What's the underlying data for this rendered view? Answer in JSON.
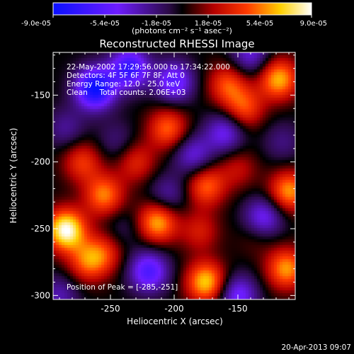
{
  "colorbar": {
    "ticks": [
      "-9.0e-05",
      "-5.4e-05",
      "-1.8e-05",
      "1.8e-05",
      "5.4e-05",
      "9.0e-05"
    ],
    "unit_label": "(photons cm⁻² s⁻¹ asec⁻²)",
    "range": [
      -9e-05,
      9e-05
    ]
  },
  "footer": {
    "timestamp": "20-Apr-2013 09:07"
  },
  "chart_data": {
    "type": "heatmap",
    "title": "Reconstructed RHESSI Image",
    "xlabel": "Heliocentric X (arcsec)",
    "ylabel": "Heliocentric Y (arcsec)",
    "xlim": [
      -295,
      -105
    ],
    "ylim": [
      -303,
      -118
    ],
    "xticks": [
      "-250",
      "-200",
      "-150"
    ],
    "xtick_values": [
      -250,
      -200,
      -150
    ],
    "yticks": [
      "-150",
      "-200",
      "-250",
      "-300"
    ],
    "ytick_values": [
      -150,
      -200,
      -250,
      -300
    ],
    "colormap": "blue-purple-black-red-yellow-white",
    "annotations": [
      "22-May-2002 17:29:56.000 to 17:34:22.000",
      "Detectors: 4F 5F 6F 7F 8F, Att 0",
      "Energy Range: 12.0 - 25.0 keV",
      "Clean     Total counts: 2.06E+03"
    ],
    "peak_label": "Position of Peak = [-285,-251]",
    "peak_position": [
      -285,
      -251
    ],
    "sources": [
      {
        "x": -285,
        "y": -251,
        "value": 9e-05
      },
      {
        "x": -213,
        "y": -245,
        "value": 6.5e-05
      },
      {
        "x": -255,
        "y": -225,
        "value": 5.5e-05
      },
      {
        "x": -175,
        "y": -218,
        "value": 5e-05
      },
      {
        "x": -205,
        "y": -175,
        "value": 5e-05
      },
      {
        "x": -145,
        "y": -160,
        "value": 4.5e-05
      },
      {
        "x": -118,
        "y": -138,
        "value": 6.5e-05
      },
      {
        "x": -158,
        "y": -142,
        "value": 4.5e-05
      },
      {
        "x": -175,
        "y": -290,
        "value": 7e-05
      },
      {
        "x": -112,
        "y": -280,
        "value": 6e-05
      },
      {
        "x": -110,
        "y": -222,
        "value": 6e-05
      },
      {
        "x": -268,
        "y": -275,
        "value": 4.5e-05
      },
      {
        "x": -272,
        "y": -200,
        "value": 4e-05
      },
      {
        "x": -230,
        "y": -200,
        "value": 3.5e-05
      },
      {
        "x": -180,
        "y": -252,
        "value": 3e-05
      },
      {
        "x": -150,
        "y": -205,
        "value": 2.5e-05
      },
      {
        "x": -255,
        "y": -268,
        "value": 3.5e-05
      },
      {
        "x": -135,
        "y": -255,
        "value": 1.5e-05
      },
      {
        "x": -262,
        "y": -145,
        "value": -9e-05
      },
      {
        "x": -235,
        "y": -130,
        "value": -7e-05
      },
      {
        "x": -200,
        "y": -140,
        "value": -5.5e-05
      },
      {
        "x": -220,
        "y": -282,
        "value": -6e-05
      },
      {
        "x": -150,
        "y": -300,
        "value": -5e-05
      },
      {
        "x": -130,
        "y": -242,
        "value": -5e-05
      },
      {
        "x": -185,
        "y": -195,
        "value": -4e-05
      },
      {
        "x": -160,
        "y": -178,
        "value": -4.5e-05
      },
      {
        "x": -140,
        "y": -120,
        "value": -4e-05
      },
      {
        "x": -285,
        "y": -175,
        "value": -2.5e-05
      },
      {
        "x": -205,
        "y": -225,
        "value": -3e-05
      },
      {
        "x": -290,
        "y": -300,
        "value": -3e-05
      },
      {
        "x": -245,
        "y": -185,
        "value": -2e-05
      },
      {
        "x": -115,
        "y": -185,
        "value": -2e-05
      },
      {
        "x": -240,
        "y": -250,
        "value": -1.5e-05
      }
    ]
  }
}
